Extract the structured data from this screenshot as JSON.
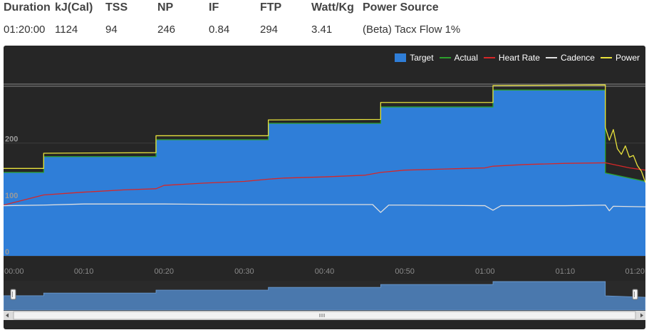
{
  "stats": {
    "headers": [
      "Duration",
      "kJ(Cal)",
      "TSS",
      "NP",
      "IF",
      "FTP",
      "Watt/Kg",
      "Power Source"
    ],
    "values": [
      "01:20:00",
      "1124",
      "94",
      "246",
      "0.84",
      "294",
      "3.41",
      "(Beta) Tacx Flow 1%"
    ]
  },
  "colors": {
    "panel_bg": "#262626",
    "target": "#2f7ed8",
    "actual": "#2ca02c",
    "heart_rate": "#d62728",
    "cadence": "#e0e0e0",
    "power": "#e8e23c"
  },
  "chart_data": {
    "type": "area",
    "x_unit": "minutes",
    "xlim": [
      0,
      80
    ],
    "ylim": [
      0,
      302
    ],
    "yticks": [
      "0",
      "100",
      "200"
    ],
    "xticks": [
      "00:00",
      "00:10",
      "00:20",
      "00:30",
      "00:40",
      "00:50",
      "01:00",
      "01:10",
      "01:20"
    ],
    "grid": true,
    "legend_position": "top-right",
    "series": [
      {
        "name": "Target",
        "style": "area",
        "x": [
          0,
          5,
          5,
          19,
          19,
          33,
          33,
          47,
          47,
          61,
          61,
          75,
          75,
          80
        ],
        "y": [
          148,
          148,
          176,
          176,
          206,
          206,
          235,
          235,
          264,
          264,
          294,
          294,
          147,
          132
        ]
      },
      {
        "name": "Actual",
        "style": "line",
        "x": [
          0,
          5,
          5,
          19,
          19,
          33,
          33,
          47,
          47,
          61,
          61,
          75,
          75,
          80
        ],
        "y": [
          148,
          148,
          176,
          176,
          206,
          206,
          235,
          235,
          264,
          264,
          294,
          294,
          147,
          132
        ]
      },
      {
        "name": "Heart Rate",
        "style": "line",
        "x": [
          0,
          5,
          10,
          15,
          19,
          20,
          25,
          30,
          33,
          35,
          40,
          45,
          47,
          50,
          55,
          60,
          61,
          65,
          70,
          75,
          78,
          80
        ],
        "y": [
          90,
          108,
          113,
          117,
          119,
          125,
          129,
          132,
          136,
          138,
          140,
          143,
          148,
          152,
          154,
          156,
          159,
          162,
          164,
          165,
          156,
          152
        ]
      },
      {
        "name": "Cadence",
        "style": "line",
        "x": [
          0,
          5,
          10,
          20,
          30,
          40,
          46,
          47,
          48,
          50,
          60,
          61,
          62,
          70,
          75,
          75.5,
          76,
          80
        ],
        "y": [
          89,
          90,
          92,
          92,
          91,
          91,
          91,
          77,
          90,
          90,
          89,
          81,
          89,
          89,
          90,
          80,
          88,
          87
        ]
      },
      {
        "name": "Power",
        "style": "line",
        "x": [
          0,
          5,
          5,
          19,
          19,
          33,
          33,
          47,
          47,
          61,
          61,
          75,
          75,
          75.5,
          76,
          76.5,
          77,
          77.5,
          78,
          78.5,
          79,
          79.5,
          80
        ],
        "y": [
          155,
          155,
          182,
          183,
          213,
          213,
          241,
          242,
          272,
          272,
          302,
          303,
          228,
          205,
          224,
          190,
          180,
          195,
          175,
          178,
          160,
          150,
          130
        ]
      }
    ]
  }
}
